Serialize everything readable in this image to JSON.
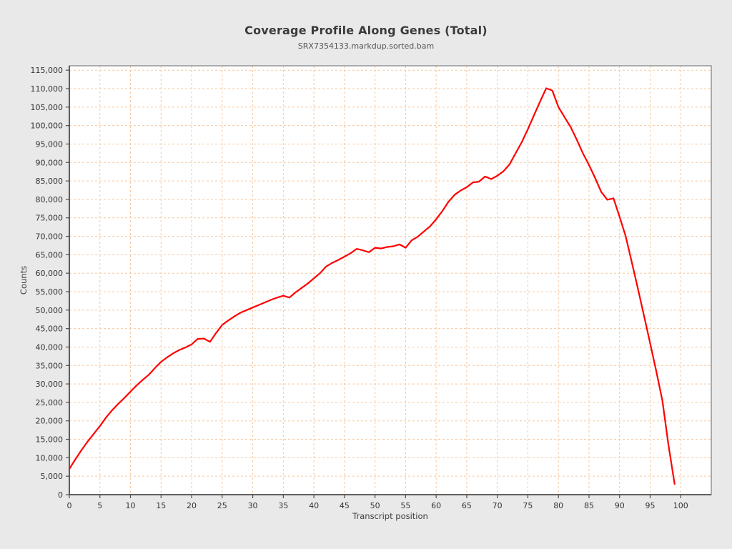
{
  "header": {
    "title": "Coverage Profile Along Genes (Total)",
    "subtitle": "SRX7354133.markdup.sorted.bam"
  },
  "chart_data": {
    "type": "line",
    "title": "Coverage Profile Along Genes (Total)",
    "subtitle": "SRX7354133.markdup.sorted.bam",
    "xlabel": "Transcript position",
    "ylabel": "Counts",
    "x": [
      0,
      1,
      2,
      3,
      4,
      5,
      6,
      7,
      8,
      9,
      10,
      11,
      12,
      13,
      14,
      15,
      16,
      17,
      18,
      19,
      20,
      21,
      22,
      23,
      24,
      25,
      26,
      27,
      28,
      29,
      30,
      31,
      32,
      33,
      34,
      35,
      36,
      37,
      38,
      39,
      40,
      41,
      42,
      43,
      44,
      45,
      46,
      47,
      48,
      49,
      50,
      51,
      52,
      53,
      54,
      55,
      56,
      57,
      58,
      59,
      60,
      61,
      62,
      63,
      64,
      65,
      66,
      67,
      68,
      69,
      70,
      71,
      72,
      73,
      74,
      75,
      76,
      77,
      78,
      79,
      80,
      81,
      82,
      83,
      84,
      85,
      86,
      87,
      88,
      89,
      90,
      91,
      92,
      93,
      94,
      95,
      96,
      97,
      98,
      99
    ],
    "values": [
      7000,
      9600,
      12100,
      14400,
      16500,
      18600,
      20900,
      22900,
      24600,
      26200,
      27900,
      29600,
      31100,
      32500,
      34300,
      36000,
      37200,
      38300,
      39200,
      39900,
      40700,
      42200,
      42300,
      41400,
      43800,
      46000,
      47200,
      48300,
      49300,
      50000,
      50700,
      51400,
      52100,
      52800,
      53400,
      53900,
      53400,
      54800,
      56000,
      57200,
      58600,
      60000,
      61800,
      62800,
      63600,
      64500,
      65400,
      66600,
      66200,
      65700,
      66900,
      66700,
      67100,
      67300,
      67800,
      66900,
      68900,
      69900,
      71300,
      72700,
      74600,
      76800,
      79300,
      81200,
      82400,
      83300,
      84600,
      84800,
      86200,
      85500,
      86400,
      87600,
      89500,
      92500,
      95500,
      99000,
      102800,
      106500,
      110100,
      109500,
      105000,
      102300,
      99600,
      96200,
      92500,
      89300,
      85800,
      82000,
      79900,
      80300,
      75300,
      70000,
      63000,
      55800,
      48500,
      41000,
      33500,
      25500,
      13500,
      2900
    ],
    "xlim": [
      0,
      105
    ],
    "ylim": [
      0,
      116200
    ],
    "x_ticks": [
      0,
      5,
      10,
      15,
      20,
      25,
      30,
      35,
      40,
      45,
      50,
      55,
      60,
      65,
      70,
      75,
      80,
      85,
      90,
      95,
      100
    ],
    "y_ticks": [
      0,
      5000,
      10000,
      15000,
      20000,
      25000,
      30000,
      35000,
      40000,
      45000,
      50000,
      55000,
      60000,
      65000,
      70000,
      75000,
      80000,
      85000,
      90000,
      95000,
      100000,
      105000,
      110000,
      115000
    ],
    "grid": true,
    "legend": "none",
    "line_color": "#fe0000",
    "grid_color": "#f6c8a0",
    "plot_background": "#ffffff",
    "page_background": "#e9e9e9",
    "axis_color": "#4f4f4f",
    "border_color": "#7d7d7d",
    "tick_label_color": "#333333"
  }
}
